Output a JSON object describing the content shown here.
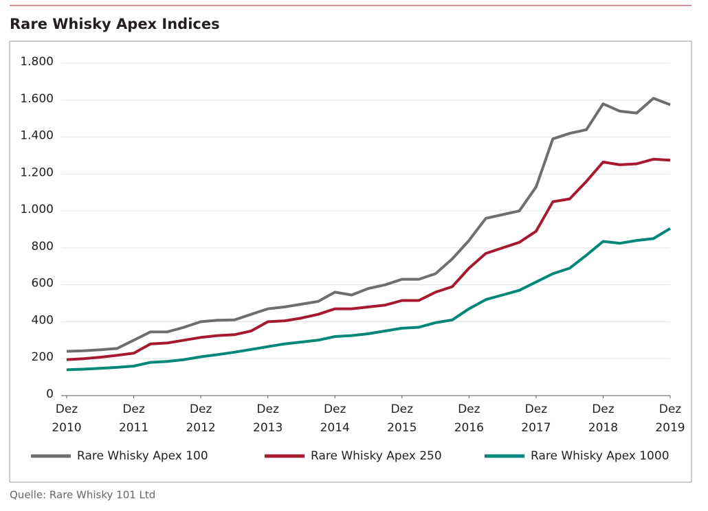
{
  "chart_data": {
    "type": "line",
    "title": "Rare Whisky Apex Indices",
    "source": "Quelle: Rare Whisky 101 Ltd",
    "x": [
      "2010-12",
      "2011-03",
      "2011-06",
      "2011-09",
      "2011-12",
      "2012-03",
      "2012-06",
      "2012-09",
      "2012-12",
      "2013-03",
      "2013-06",
      "2013-09",
      "2013-12",
      "2014-03",
      "2014-06",
      "2014-09",
      "2014-12",
      "2015-03",
      "2015-06",
      "2015-09",
      "2015-12",
      "2016-03",
      "2016-06",
      "2016-09",
      "2016-12",
      "2017-03",
      "2017-06",
      "2017-09",
      "2017-12",
      "2018-03",
      "2018-06",
      "2018-09",
      "2018-12",
      "2019-03",
      "2019-06",
      "2019-09",
      "2019-12"
    ],
    "series": [
      {
        "name": "Rare Whisky Apex 100",
        "color": "#6d6e71",
        "values": [
          240,
          243,
          248,
          255,
          300,
          345,
          345,
          370,
          400,
          408,
          410,
          440,
          470,
          480,
          495,
          510,
          560,
          545,
          580,
          600,
          630,
          630,
          660,
          740,
          840,
          960,
          980,
          1000,
          1130,
          1390,
          1420,
          1440,
          1580,
          1540,
          1530,
          1610,
          1575
        ]
      },
      {
        "name": "Rare Whisky Apex 250",
        "color": "#a6192e",
        "values": [
          195,
          200,
          208,
          218,
          230,
          280,
          285,
          300,
          315,
          325,
          330,
          350,
          400,
          405,
          420,
          440,
          470,
          470,
          480,
          490,
          515,
          515,
          560,
          590,
          690,
          770,
          800,
          830,
          890,
          1050,
          1065,
          1160,
          1265,
          1250,
          1255,
          1280,
          1275
        ]
      },
      {
        "name": "Rare Whisky Apex 1000",
        "color": "#00877a",
        "values": [
          140,
          143,
          148,
          153,
          160,
          180,
          185,
          195,
          210,
          222,
          235,
          250,
          265,
          280,
          290,
          300,
          320,
          325,
          335,
          350,
          365,
          370,
          395,
          410,
          470,
          520,
          545,
          570,
          615,
          660,
          690,
          760,
          835,
          825,
          840,
          850,
          905
        ]
      }
    ],
    "xlim": [
      "2010-12",
      "2019-12"
    ],
    "xticks": [
      {
        "value": "2010-12",
        "label": "Dez 2010"
      },
      {
        "value": "2011-12",
        "label": "Dez 2011"
      },
      {
        "value": "2012-12",
        "label": "Dez 2012"
      },
      {
        "value": "2013-12",
        "label": "Dez 2013"
      },
      {
        "value": "2014-12",
        "label": "Dez 2014"
      },
      {
        "value": "2015-12",
        "label": "Dez 2015"
      },
      {
        "value": "2016-12",
        "label": "Dez 2016"
      },
      {
        "value": "2017-12",
        "label": "Dez 2017"
      },
      {
        "value": "2018-12",
        "label": "Dez 2018"
      },
      {
        "value": "2019-12",
        "label": "Dez 2019"
      }
    ],
    "ylim": [
      0,
      1800
    ],
    "yticks": [
      0,
      200,
      400,
      600,
      800,
      {
        "value": 1000,
        "label": "1.000"
      },
      {
        "value": 1200,
        "label": "1.200"
      },
      {
        "value": 1400,
        "label": "1.400"
      },
      {
        "value": 1600,
        "label": "1.600"
      },
      {
        "value": 1800,
        "label": "1.800"
      }
    ],
    "grid": true,
    "legend": "bottom"
  }
}
